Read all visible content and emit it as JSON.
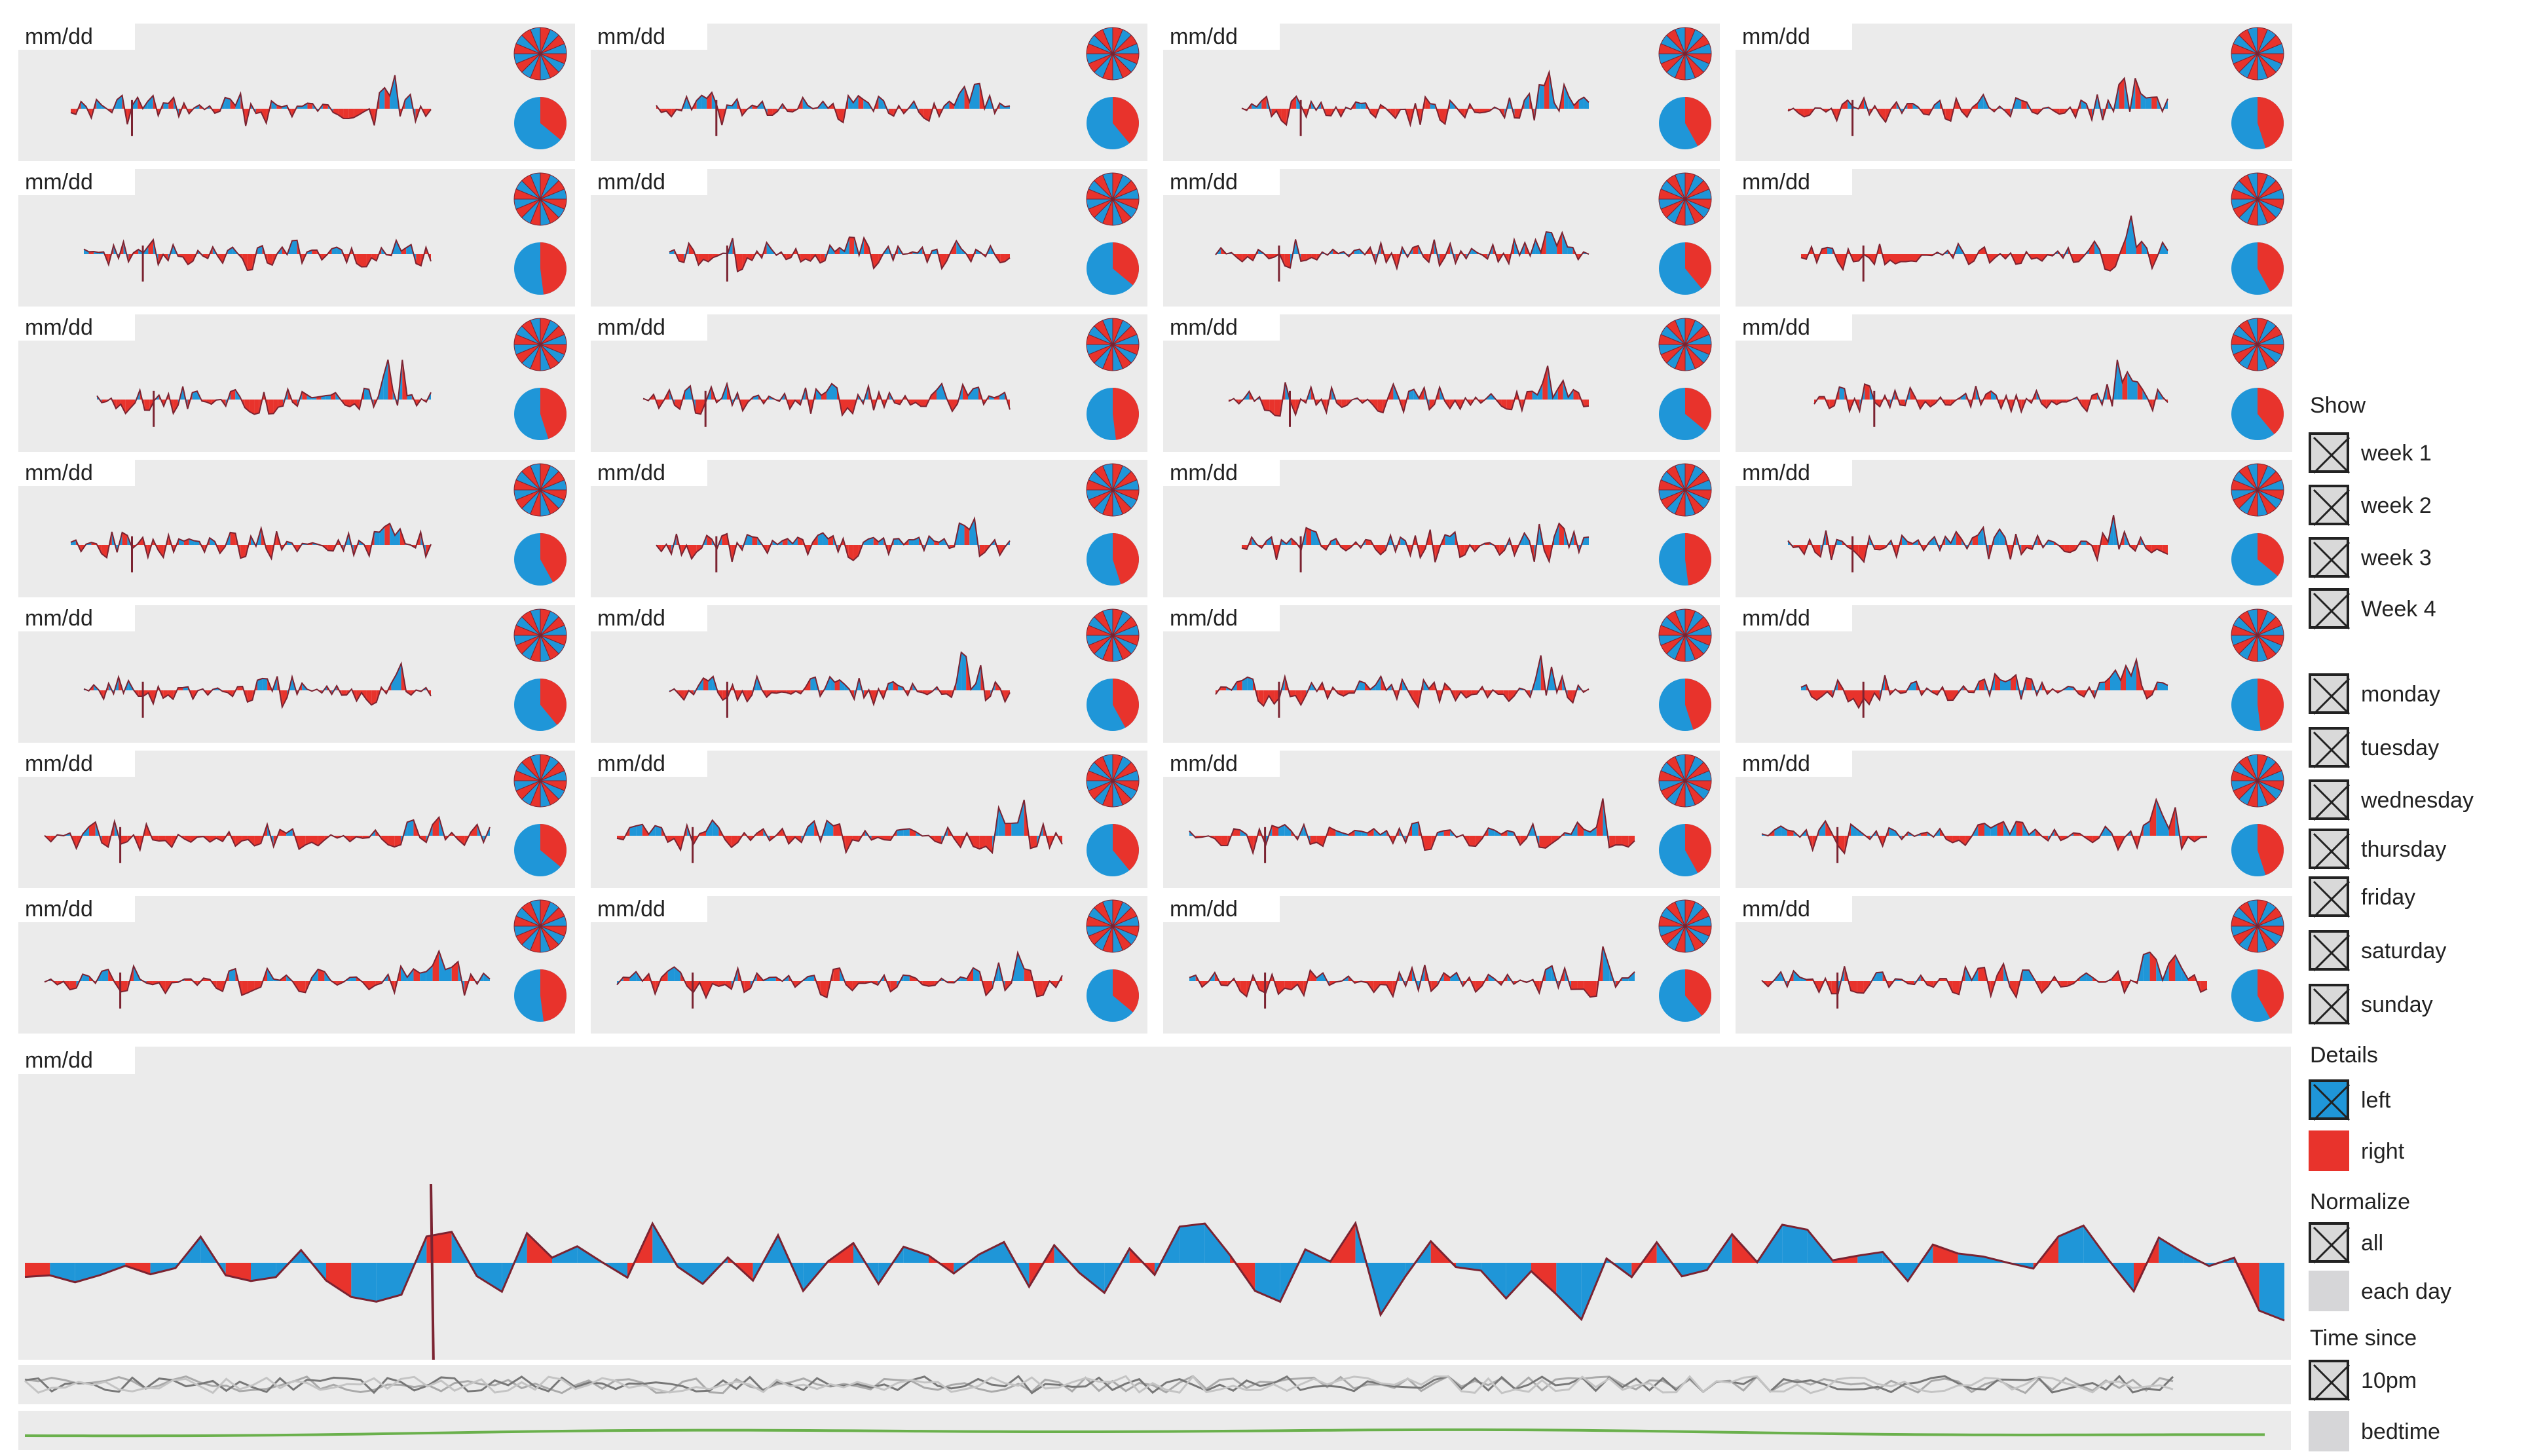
{
  "grid": {
    "columns": 4,
    "rows": 7,
    "cell_label": "mm/dd"
  },
  "main_chart": {
    "label": "mm/dd"
  },
  "colors": {
    "left": "#1f96d8",
    "right": "#e8332c",
    "outline": "#7b2331",
    "panel": "#ebebeb",
    "trend": "#6ab04c",
    "gray_line": "#888888"
  },
  "controls": {
    "show": {
      "title": "Show",
      "weeks": [
        {
          "label": "week 1",
          "checked": true
        },
        {
          "label": "week 2",
          "checked": true
        },
        {
          "label": "week 3",
          "checked": true
        },
        {
          "label": "Week 4",
          "checked": true
        }
      ],
      "days": [
        {
          "label": "monday",
          "checked": true
        },
        {
          "label": "tuesday",
          "checked": true
        },
        {
          "label": "wednesday",
          "checked": true
        },
        {
          "label": "thursday",
          "checked": true
        },
        {
          "label": "friday",
          "checked": true
        },
        {
          "label": "saturday",
          "checked": true
        },
        {
          "label": "sunday",
          "checked": true
        }
      ]
    },
    "details": {
      "title": "Details",
      "options": [
        {
          "label": "left",
          "checked": true,
          "swatch": "#1f96d8"
        },
        {
          "label": "right",
          "checked": false,
          "swatch": "#e8332c"
        }
      ]
    },
    "normalize": {
      "title": "Normalize",
      "options": [
        {
          "label": "all",
          "checked": true
        },
        {
          "label": "each day",
          "checked": false
        }
      ]
    },
    "time_since": {
      "title": "Time since",
      "options": [
        {
          "label": "10pm",
          "checked": true
        },
        {
          "label": "bedtime",
          "checked": false
        }
      ]
    }
  }
}
